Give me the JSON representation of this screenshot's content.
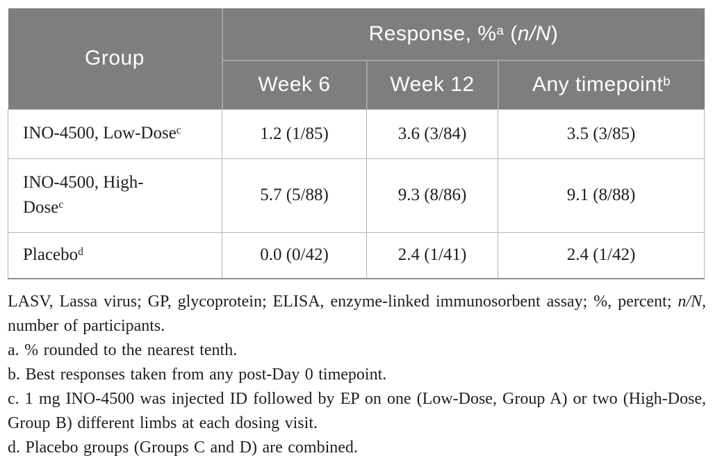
{
  "colors": {
    "header_bg": "#7e7e7e",
    "header_divider": "#a6a6a6",
    "grid_line": "#b5b5b5",
    "strong_border": "#8f8f8f",
    "text_color": "#1e1e1e",
    "header_text": "#ffffff",
    "page_bg": "#ffffff"
  },
  "table": {
    "header": {
      "group_label": "Group",
      "response": {
        "prefix": "Response, %",
        "sup": "a",
        "open": " (",
        "italic": "n/N",
        "close": ")"
      },
      "subheaders": [
        {
          "label": "Week 6",
          "sup": ""
        },
        {
          "label": "Week 12",
          "sup": ""
        },
        {
          "label": "Any timepoint",
          "sup": "b"
        }
      ]
    },
    "rows": [
      {
        "group_lines": [
          "INO-4500, Low-Dose"
        ],
        "group_sup": "c",
        "values": [
          "1.2 (1/85)",
          "3.6 (3/84)",
          "3.5 (3/85)"
        ]
      },
      {
        "group_lines": [
          "INO-4500, High-",
          "Dose"
        ],
        "group_sup": "c",
        "values": [
          "5.7 (5/88)",
          "9.3 (8/86)",
          "9.1 (8/88)"
        ]
      },
      {
        "group_lines": [
          "Placebo"
        ],
        "group_sup": "d",
        "values": [
          "0.0 (0/42)",
          "2.4 (1/41)",
          "2.4 (1/42)"
        ]
      }
    ]
  },
  "footnotes": [
    {
      "segments": [
        {
          "text": "LASV, Lassa virus; GP, glycoprotein; ELISA, enzyme-linked immunosorbent assay; %, percent; "
        },
        {
          "text": "n/N",
          "italic": true
        },
        {
          "text": ", number of participants."
        }
      ]
    },
    {
      "segments": [
        {
          "text": "a. % rounded to the nearest tenth."
        }
      ]
    },
    {
      "segments": [
        {
          "text": "b. Best responses taken from any post-Day 0 timepoint."
        }
      ]
    },
    {
      "segments": [
        {
          "text": "c. 1 mg INO-4500 was injected ID followed by EP on one (Low-Dose, Group A) or two (High-Dose, Group B) different limbs at each dosing visit."
        }
      ]
    },
    {
      "segments": [
        {
          "text": "d. Placebo groups (Groups C and D) are combined."
        }
      ]
    }
  ]
}
